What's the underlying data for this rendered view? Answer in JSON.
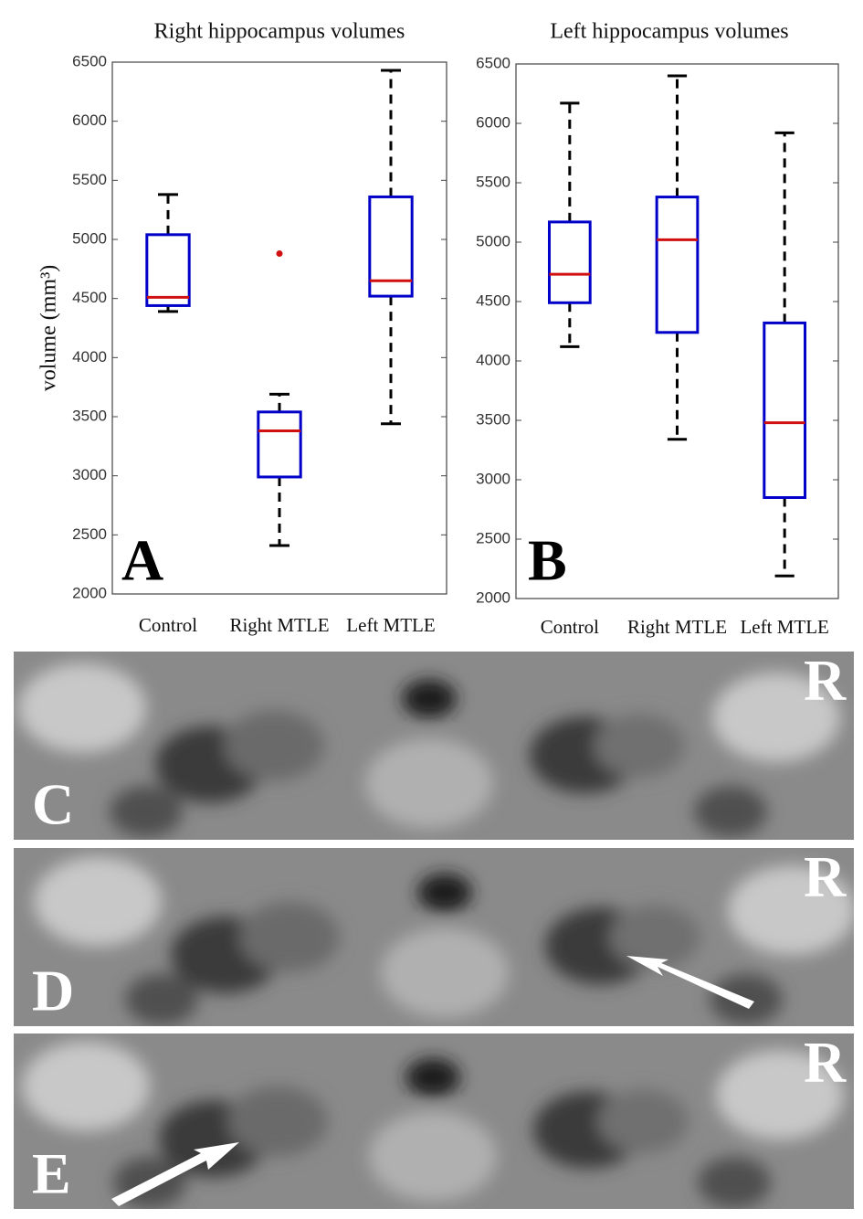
{
  "chart_data": [
    {
      "type": "box",
      "title": "Right hippocampus volumes",
      "ylabel": "volume (mm³)",
      "panel_label": "A",
      "categories": [
        "Control",
        "Right MTLE",
        "Left MTLE"
      ],
      "boxes": [
        {
          "min": 4390,
          "q1": 4440,
          "median": 4510,
          "q3": 5040,
          "max": 5380
        },
        {
          "min": 2410,
          "q1": 2990,
          "median": 3380,
          "q3": 3540,
          "max": 3690,
          "outliers": [
            4880
          ]
        },
        {
          "min": 3440,
          "q1": 4520,
          "median": 4650,
          "q3": 5360,
          "max": 6430
        }
      ],
      "box_color": "#0000c8",
      "median_color": "#d01010",
      "whisker_color": "#000000",
      "outlier_color": "#d01010",
      "ylim": [
        2000,
        6500
      ],
      "yticks": [
        2000,
        2500,
        3000,
        3500,
        4000,
        4500,
        5000,
        5500,
        6000,
        6500
      ]
    },
    {
      "type": "box",
      "title": "Left hippocampus volumes",
      "panel_label": "B",
      "categories": [
        "Control",
        "Right MTLE",
        "Left MTLE"
      ],
      "boxes": [
        {
          "min": 4120,
          "q1": 4490,
          "median": 4730,
          "q3": 5170,
          "max": 6170
        },
        {
          "min": 3340,
          "q1": 4240,
          "median": 5020,
          "q3": 5380,
          "max": 6400
        },
        {
          "min": 2190,
          "q1": 2850,
          "median": 3480,
          "q3": 4320,
          "max": 5920
        }
      ],
      "box_color": "#0000c8",
      "median_color": "#d01010",
      "whisker_color": "#000000",
      "outlier_color": "#d01010",
      "ylim": [
        2000,
        6500
      ],
      "yticks": [
        2000,
        2500,
        3000,
        3500,
        4000,
        4500,
        5000,
        5500,
        6000,
        6500
      ]
    }
  ],
  "images": [
    {
      "label": "C",
      "side_label": "R"
    },
    {
      "label": "D",
      "side_label": "R"
    },
    {
      "label": "E",
      "side_label": "R"
    }
  ]
}
